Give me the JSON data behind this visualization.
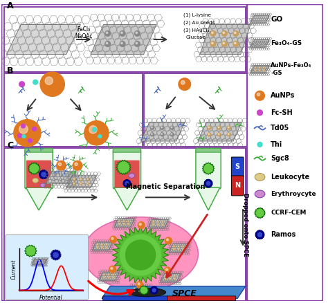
{
  "bg_color": "#ffffff",
  "border_color": "#8844aa",
  "au_color": "#e07820",
  "fe_color": "#888888",
  "au_color2": "#c8a060",
  "blue_apt": "#4466bb",
  "green_apt": "#33aa33",
  "pink_apt": "#cc44cc",
  "thi_color": "#44ddcc",
  "cell_green": "#66cc44",
  "cell_blue": "#3344cc",
  "cell_leuko": "#ddcc88",
  "cell_eryth": "#cc88cc",
  "magnet_S": "#2244cc",
  "magnet_N": "#cc2222",
  "pink_ellipse": "#ff88bb",
  "tube_green_outline": "#44aa44",
  "tube_red_fill": "#dd3333",
  "tube_clear_fill": "#cceecc",
  "graph_bg": "#d8eeff",
  "spce_blue": "#4488cc",
  "text_FeCl": "FeCl₃",
  "text_NaOAc": "NaOAc",
  "text_l1": "(1) L-lysine",
  "text_l2": "(2) Au seeds",
  "text_l3": "(3) HAuCl₄,",
  "text_l4": "Glucose",
  "text_magnetic": "Magnetic Separation",
  "text_dropped": "Dropped onto SPCE",
  "text_spce": "SPCE",
  "text_current": "Current",
  "text_potential": "Potential",
  "label_A": "A",
  "label_B": "B",
  "label_C": "C",
  "label_GO": "GO",
  "label_Fe": "Fe₃O₄-GS",
  "label_AuFe": "AuNPs-Fe₃O₄\n-GS",
  "label_AuNPs": "AuNPs",
  "label_FcSH": "Fc-SH",
  "label_Td05": "Td05",
  "label_Thi": "Thi",
  "label_Sgc8": "Sgc8",
  "label_Leuko": "Leukocyte",
  "label_Eryth": "Erythroycyte",
  "label_CEM": "CCRF-CEM",
  "label_Ramos": "Ramos"
}
